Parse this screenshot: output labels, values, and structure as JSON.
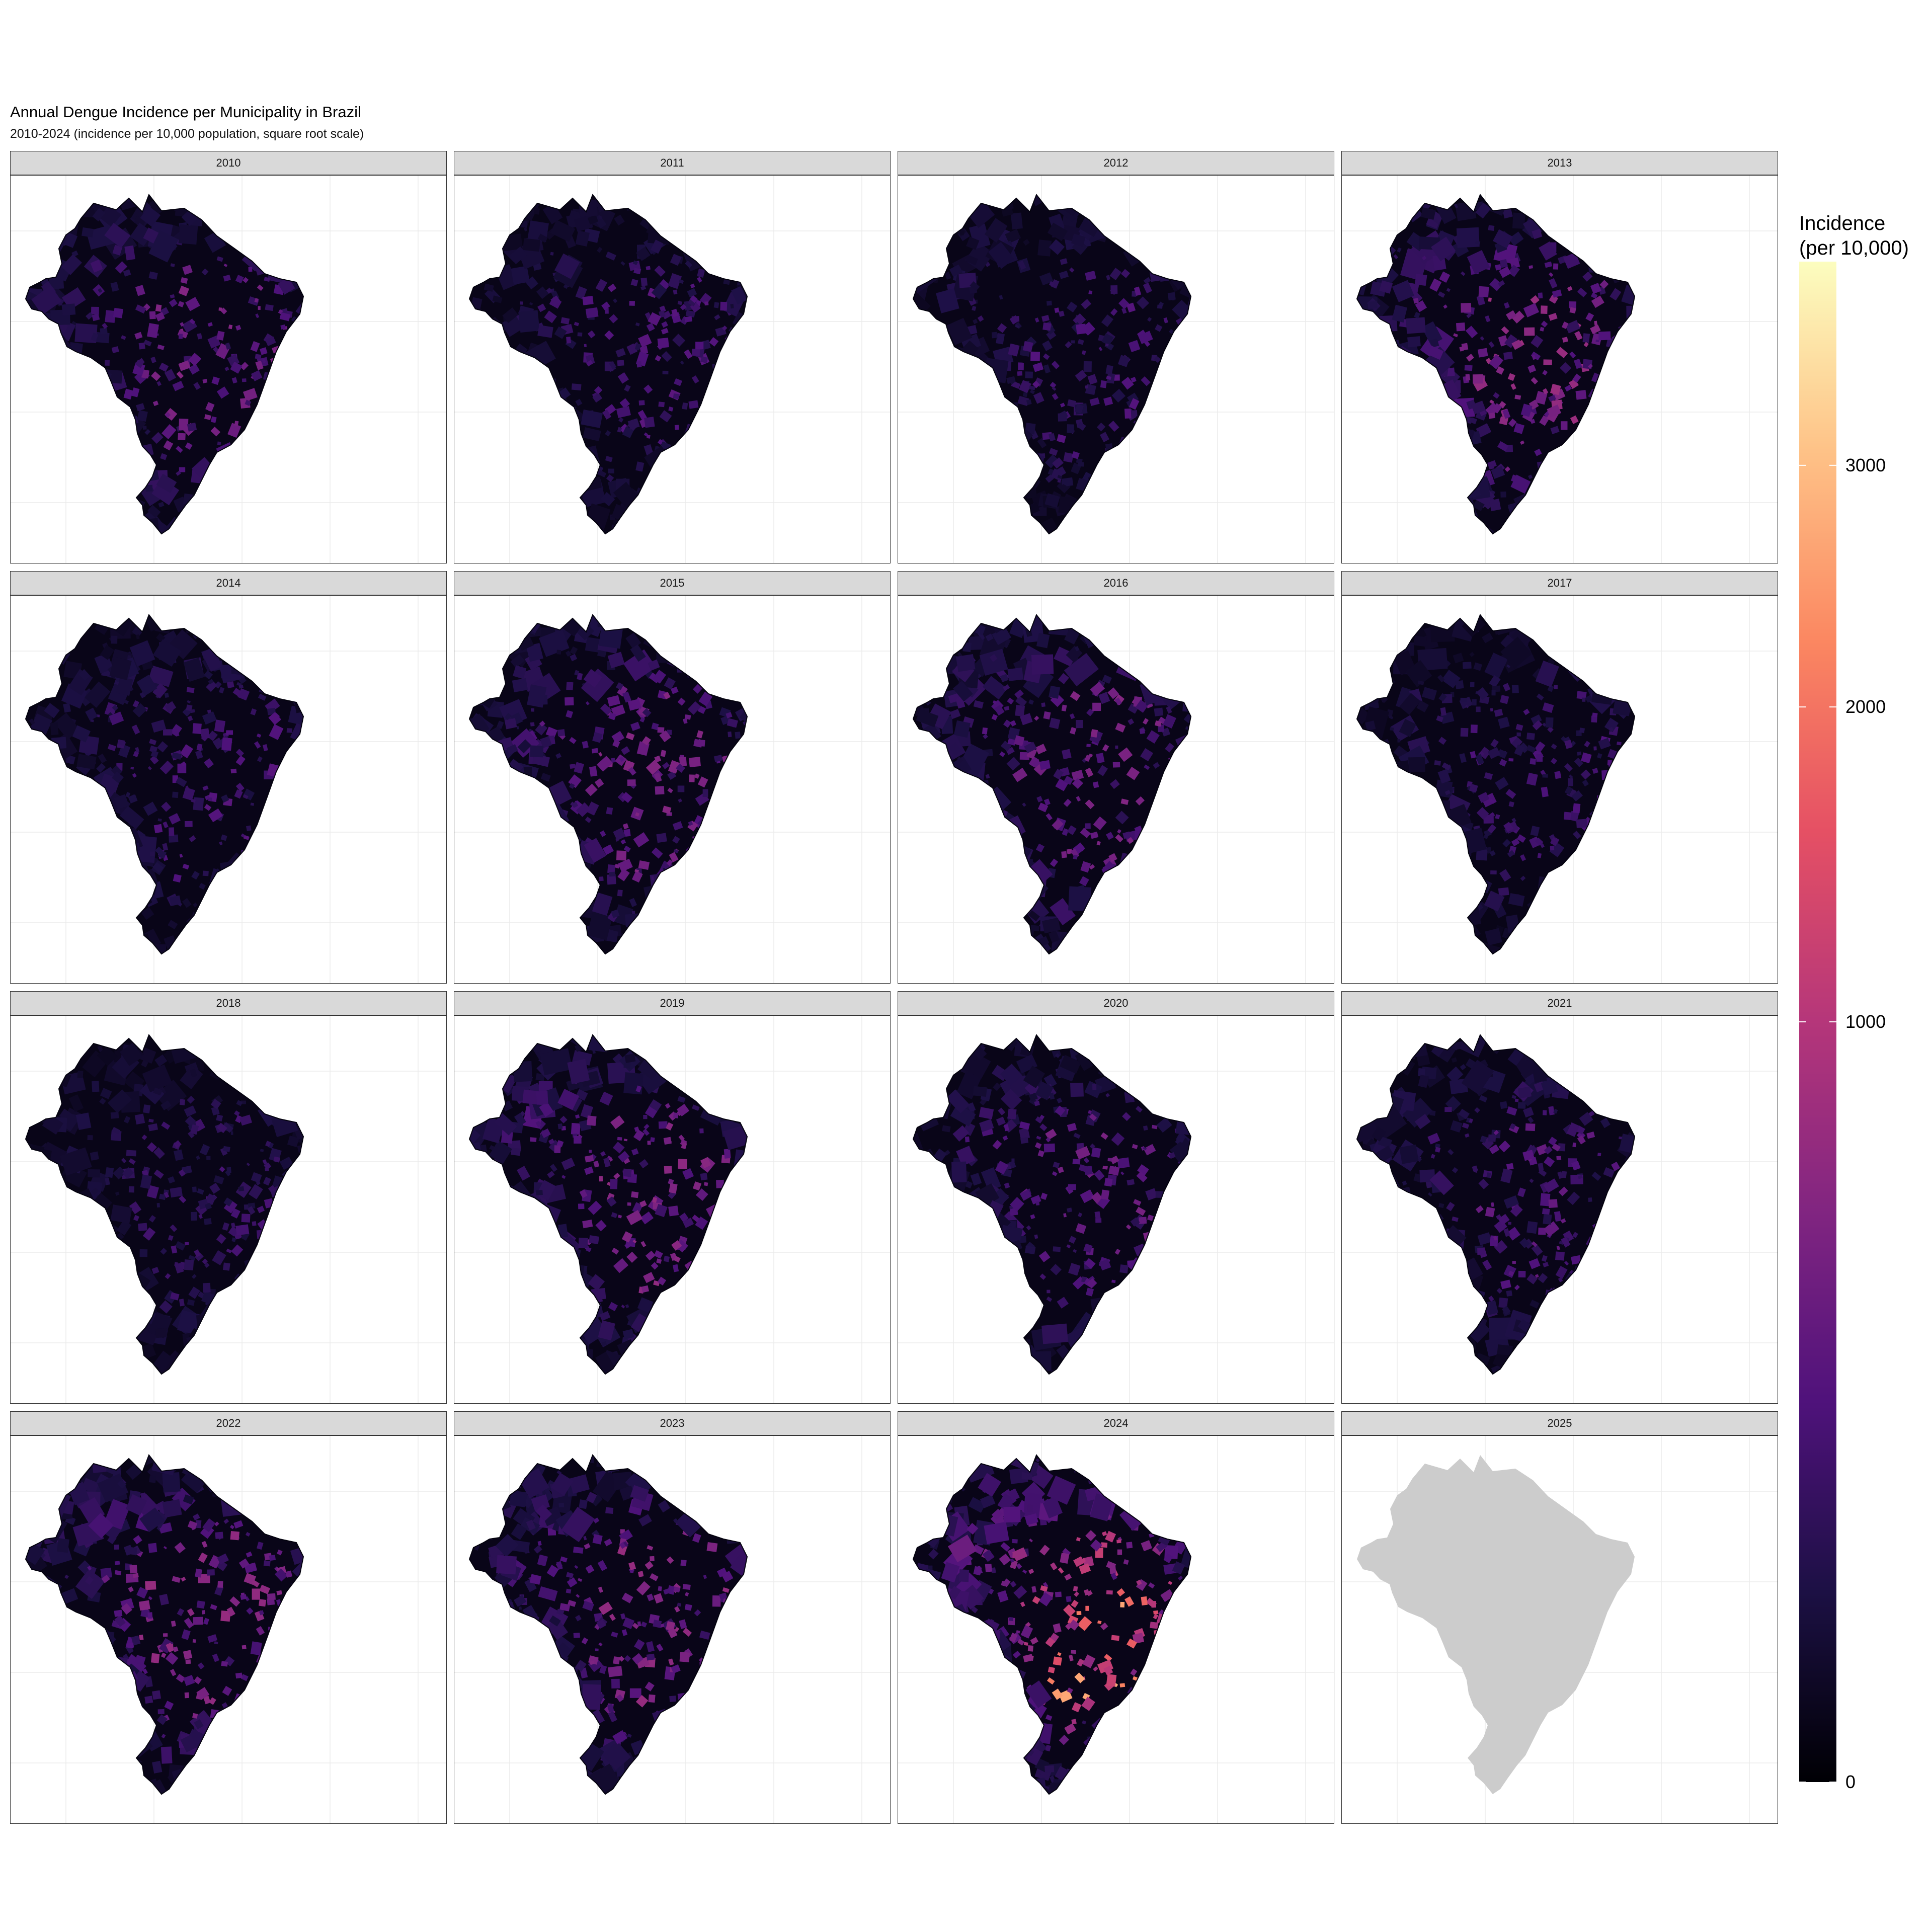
{
  "title": "Annual Dengue Incidence per Municipality in Brazil",
  "subtitle": "2010-2024 (incidence per 10,000 population, square root scale)",
  "facets": [
    {
      "label": "2010",
      "level": 0.24,
      "hot": 0.0,
      "has_data": true
    },
    {
      "label": "2011",
      "level": 0.17,
      "hot": 0.0,
      "has_data": true
    },
    {
      "label": "2012",
      "level": 0.16,
      "hot": 0.0,
      "has_data": true
    },
    {
      "label": "2013",
      "level": 0.28,
      "hot": 0.05,
      "has_data": true
    },
    {
      "label": "2014",
      "level": 0.17,
      "hot": 0.0,
      "has_data": true
    },
    {
      "label": "2015",
      "level": 0.24,
      "hot": 0.05,
      "has_data": true
    },
    {
      "label": "2016",
      "level": 0.24,
      "hot": 0.05,
      "has_data": true
    },
    {
      "label": "2017",
      "level": 0.15,
      "hot": 0.0,
      "has_data": true
    },
    {
      "label": "2018",
      "level": 0.14,
      "hot": 0.0,
      "has_data": true
    },
    {
      "label": "2019",
      "level": 0.27,
      "hot": 0.08,
      "has_data": true
    },
    {
      "label": "2020",
      "level": 0.22,
      "hot": 0.12,
      "has_data": true
    },
    {
      "label": "2021",
      "level": 0.19,
      "hot": 0.05,
      "has_data": true
    },
    {
      "label": "2022",
      "level": 0.27,
      "hot": 0.22,
      "has_data": true
    },
    {
      "label": "2023",
      "level": 0.27,
      "hot": 0.3,
      "has_data": true
    },
    {
      "label": "2024",
      "level": 0.35,
      "hot": 0.85,
      "has_data": true
    },
    {
      "label": "2025",
      "level": 0.0,
      "hot": 0.0,
      "has_data": false
    }
  ],
  "legend": {
    "title_line1": "Incidence",
    "title_line2": "(per 10,000)",
    "palette": "magma",
    "scale": "sqrt",
    "max": 4000,
    "ticks": [
      {
        "label": "0",
        "value": 0
      },
      {
        "label": "1000",
        "value": 1000
      },
      {
        "label": "2000",
        "value": 2000
      },
      {
        "label": "3000",
        "value": 3000
      }
    ]
  },
  "colors": {
    "no_data_fill": "#cccccc",
    "strip_fill": "#d9d9d9",
    "grid": "#ebebeb",
    "magma_stops": [
      "#000004",
      "#1c1044",
      "#4f127b",
      "#812581",
      "#b5367a",
      "#e55064",
      "#fb8761",
      "#fec287",
      "#fcfdbf"
    ]
  }
}
